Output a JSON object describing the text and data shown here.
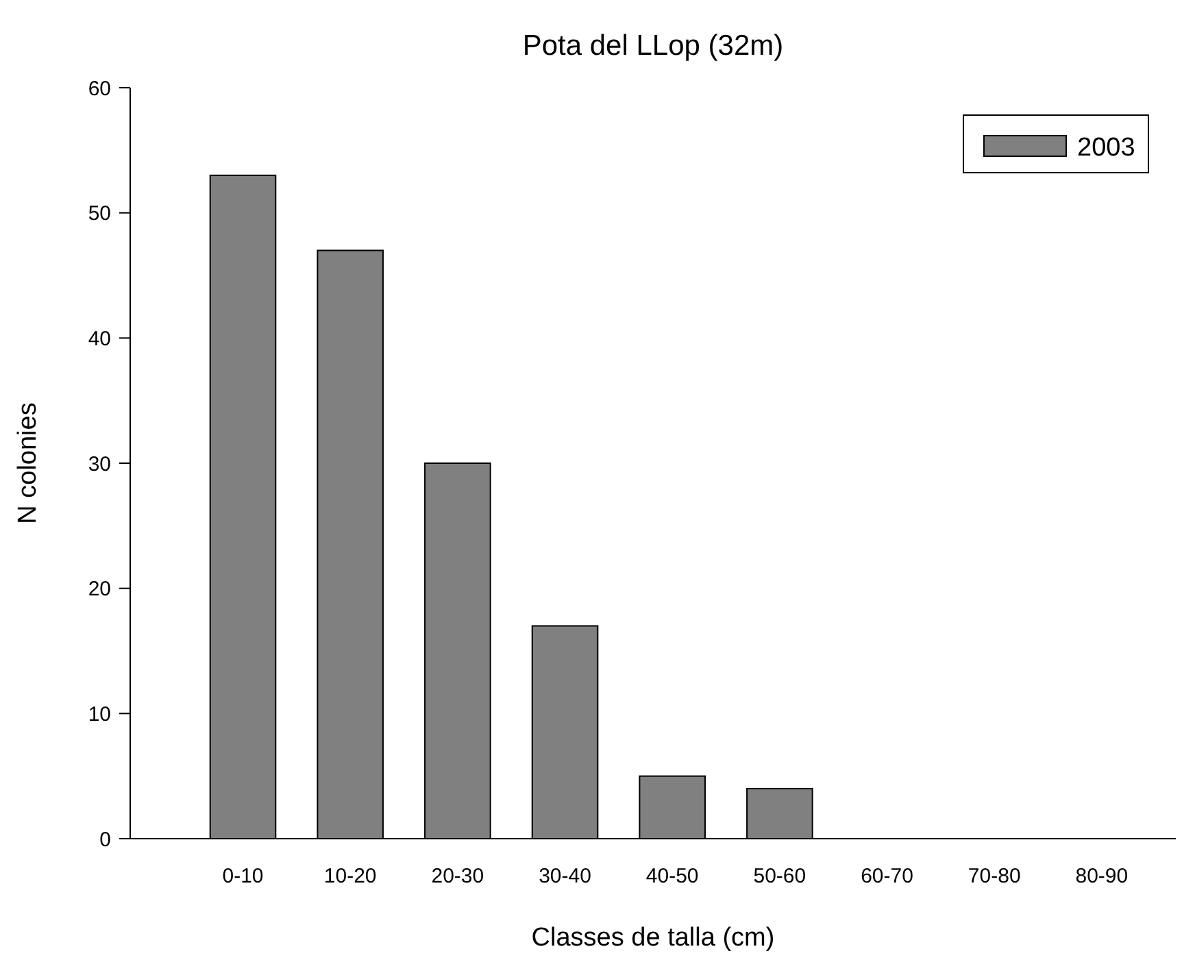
{
  "chart_data": {
    "type": "bar",
    "title": "Pota del LLop (32m)",
    "xlabel": "Classes de talla (cm)",
    "ylabel": "N colonies",
    "categories": [
      "0-10",
      "10-20",
      "20-30",
      "30-40",
      "40-50",
      "50-60",
      "60-70",
      "70-80",
      "80-90"
    ],
    "series": [
      {
        "name": "2003",
        "color": "#808080",
        "values": [
          53,
          47,
          30,
          17,
          5,
          4,
          0,
          0,
          0
        ]
      }
    ],
    "ylim": [
      0,
      60
    ],
    "yticks": [
      0,
      10,
      20,
      30,
      40,
      50,
      60
    ],
    "legend": "top right"
  }
}
